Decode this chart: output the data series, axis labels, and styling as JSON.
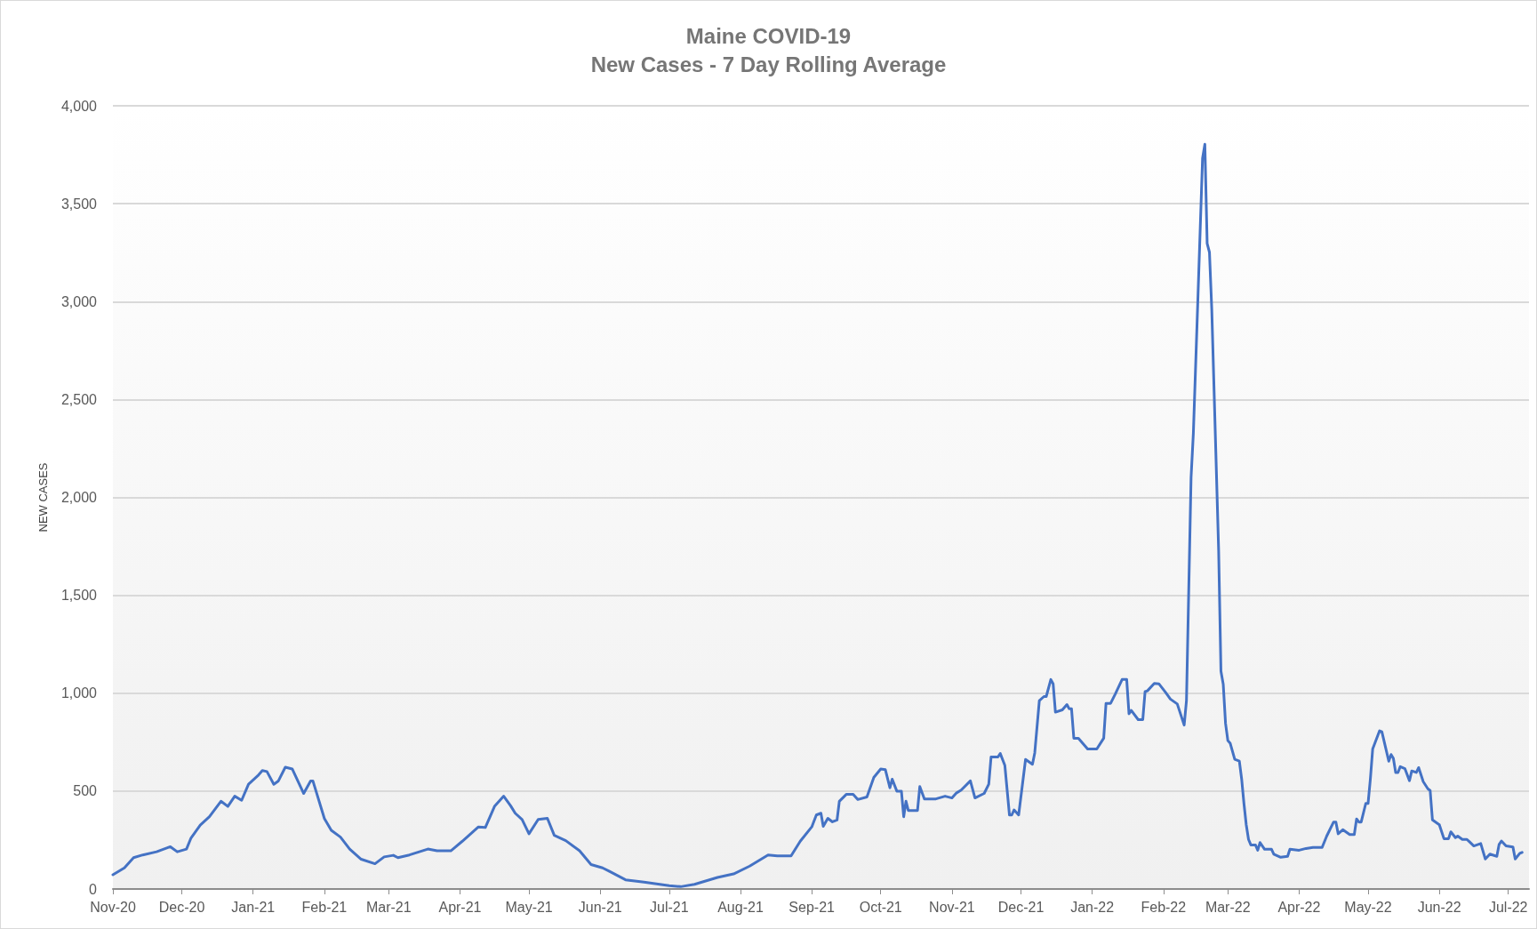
{
  "chart_data": {
    "type": "line",
    "title": "Maine COVID-19",
    "subtitle": "New Cases - 7 Day Rolling Average",
    "ylabel": "NEW CASES",
    "xlim": [
      "2020-11-01",
      "2022-07-10"
    ],
    "xticks": [
      {
        "value": "2020-11-01",
        "label": "Nov-20"
      },
      {
        "value": "2020-12-01",
        "label": "Dec-20"
      },
      {
        "value": "2021-01-01",
        "label": "Jan-21"
      },
      {
        "value": "2021-02-01",
        "label": "Feb-21"
      },
      {
        "value": "2021-03-01",
        "label": "Mar-21"
      },
      {
        "value": "2021-04-01",
        "label": "Apr-21"
      },
      {
        "value": "2021-05-01",
        "label": "May-21"
      },
      {
        "value": "2021-06-01",
        "label": "Jun-21"
      },
      {
        "value": "2021-07-01",
        "label": "Jul-21"
      },
      {
        "value": "2021-08-01",
        "label": "Aug-21"
      },
      {
        "value": "2021-09-01",
        "label": "Sep-21"
      },
      {
        "value": "2021-10-01",
        "label": "Oct-21"
      },
      {
        "value": "2021-11-01",
        "label": "Nov-21"
      },
      {
        "value": "2021-12-01",
        "label": "Dec-21"
      },
      {
        "value": "2022-01-01",
        "label": "Jan-22"
      },
      {
        "value": "2022-02-01",
        "label": "Feb-22"
      },
      {
        "value": "2022-03-01",
        "label": "Mar-22"
      },
      {
        "value": "2022-04-01",
        "label": "Apr-22"
      },
      {
        "value": "2022-05-01",
        "label": "May-22"
      },
      {
        "value": "2022-06-01",
        "label": "Jun-22"
      },
      {
        "value": "2022-07-01",
        "label": "Jul-22"
      }
    ],
    "ylim": [
      0,
      4000
    ],
    "yticks": [
      0,
      500,
      {
        "value": 1000,
        "label": "1,000"
      },
      {
        "value": 1500,
        "label": "1,500"
      },
      {
        "value": 2000,
        "label": "2,000"
      },
      {
        "value": 2500,
        "label": "2,500"
      },
      {
        "value": 3000,
        "label": "3,000"
      },
      {
        "value": 3500,
        "label": "3,500"
      },
      {
        "value": 4000,
        "label": "4,000"
      }
    ],
    "grid": "y",
    "marker": "none",
    "line_style": "solid",
    "series": [
      {
        "color": "#4472c4",
        "x": [
          "2020-11-01",
          "2020-11-06",
          "2020-11-10",
          "2020-11-14",
          "2020-11-20",
          "2020-11-26",
          "2020-11-29",
          "2020-12-03",
          "2020-12-05",
          "2020-12-09",
          "2020-12-13",
          "2020-12-18",
          "2020-12-21",
          "2020-12-24",
          "2020-12-27",
          "2020-12-30",
          "2021-01-03",
          "2021-01-05",
          "2021-01-07",
          "2021-01-10",
          "2021-01-12",
          "2021-01-15",
          "2021-01-18",
          "2021-01-23",
          "2021-01-26",
          "2021-01-27",
          "2021-02-01",
          "2021-02-04",
          "2021-02-08",
          "2021-02-12",
          "2021-02-17",
          "2021-02-23",
          "2021-02-27",
          "2021-03-03",
          "2021-03-05",
          "2021-03-10",
          "2021-03-18",
          "2021-03-22",
          "2021-03-28",
          "2021-04-02",
          "2021-04-09",
          "2021-04-12",
          "2021-04-16",
          "2021-04-20",
          "2021-04-23",
          "2021-04-25",
          "2021-04-28",
          "2021-05-01",
          "2021-05-05",
          "2021-05-09",
          "2021-05-12",
          "2021-05-17",
          "2021-05-23",
          "2021-05-28",
          "2021-06-02",
          "2021-06-05",
          "2021-06-12",
          "2021-06-20",
          "2021-07-01",
          "2021-07-06",
          "2021-07-12",
          "2021-07-22",
          "2021-07-29",
          "2021-08-05",
          "2021-08-13",
          "2021-08-17",
          "2021-08-23",
          "2021-08-27",
          "2021-09-01",
          "2021-09-03",
          "2021-09-05",
          "2021-09-06",
          "2021-09-08",
          "2021-09-10",
          "2021-09-12",
          "2021-09-13",
          "2021-09-16",
          "2021-09-19",
          "2021-09-21",
          "2021-09-25",
          "2021-09-28",
          "2021-10-01",
          "2021-10-03",
          "2021-10-05",
          "2021-10-06",
          "2021-10-08",
          "2021-10-10",
          "2021-10-11",
          "2021-10-12",
          "2021-10-13",
          "2021-10-17",
          "2021-10-18",
          "2021-10-20",
          "2021-10-25",
          "2021-10-29",
          "2021-11-01",
          "2021-11-03",
          "2021-11-05",
          "2021-11-09",
          "2021-11-11",
          "2021-11-15",
          "2021-11-17",
          "2021-11-18",
          "2021-11-21",
          "2021-11-22",
          "2021-11-24",
          "2021-11-26",
          "2021-11-27",
          "2021-11-28",
          "2021-11-30",
          "2021-12-03",
          "2021-12-06",
          "2021-12-07",
          "2021-12-09",
          "2021-12-11",
          "2021-12-12",
          "2021-12-14",
          "2021-12-15",
          "2021-12-16",
          "2021-12-19",
          "2021-12-21",
          "2021-12-22",
          "2021-12-23",
          "2021-12-24",
          "2021-12-26",
          "2021-12-30",
          "2022-01-03",
          "2022-01-06",
          "2022-01-07",
          "2022-01-09",
          "2022-01-11",
          "2022-01-14",
          "2022-01-16",
          "2022-01-17",
          "2022-01-18",
          "2022-01-21",
          "2022-01-23",
          "2022-01-24",
          "2022-01-25",
          "2022-01-28",
          "2022-01-30",
          "2022-02-02",
          "2022-02-04",
          "2022-02-07",
          "2022-02-10",
          "2022-02-11",
          "2022-02-13",
          "2022-02-14",
          "2022-02-16",
          "2022-02-18",
          "2022-02-19",
          "2022-02-20",
          "2022-02-21",
          "2022-02-22",
          "2022-02-25",
          "2022-02-26",
          "2022-02-27",
          "2022-02-28",
          "2022-03-01",
          "2022-03-02",
          "2022-03-04",
          "2022-03-06",
          "2022-03-07",
          "2022-03-08",
          "2022-03-09",
          "2022-03-10",
          "2022-03-11",
          "2022-03-13",
          "2022-03-14",
          "2022-03-15",
          "2022-03-17",
          "2022-03-20",
          "2022-03-21",
          "2022-03-24",
          "2022-03-27",
          "2022-03-28",
          "2022-04-01",
          "2022-04-04",
          "2022-04-07",
          "2022-04-11",
          "2022-04-13",
          "2022-04-16",
          "2022-04-17",
          "2022-04-18",
          "2022-04-20",
          "2022-04-23",
          "2022-04-25",
          "2022-04-26",
          "2022-04-27",
          "2022-04-28",
          "2022-04-30",
          "2022-05-01",
          "2022-05-02",
          "2022-05-03",
          "2022-05-06",
          "2022-05-07",
          "2022-05-09",
          "2022-05-10",
          "2022-05-11",
          "2022-05-12",
          "2022-05-13",
          "2022-05-14",
          "2022-05-15",
          "2022-05-17",
          "2022-05-19",
          "2022-05-20",
          "2022-05-22",
          "2022-05-23",
          "2022-05-25",
          "2022-05-27",
          "2022-05-28",
          "2022-05-29",
          "2022-06-01",
          "2022-06-03",
          "2022-06-05",
          "2022-06-06",
          "2022-06-08",
          "2022-06-09",
          "2022-06-11",
          "2022-06-13",
          "2022-06-14",
          "2022-06-16",
          "2022-06-19",
          "2022-06-21",
          "2022-06-23",
          "2022-06-26",
          "2022-06-27",
          "2022-06-28",
          "2022-06-30",
          "2022-07-03",
          "2022-07-04",
          "2022-07-06",
          "2022-07-07"
        ],
        "values": [
          73,
          108,
          160,
          174,
          190,
          216,
          190,
          204,
          261,
          326,
          369,
          448,
          422,
          474,
          453,
          535,
          578,
          605,
          600,
          535,
          552,
          622,
          613,
          488,
          552,
          552,
          360,
          300,
          265,
          204,
          152,
          129,
          164,
          172,
          160,
          174,
          204,
          195,
          195,
          244,
          317,
          314,
          422,
          474,
          425,
          387,
          355,
          282,
          355,
          361,
          274,
          247,
          195,
          125,
          108,
          90,
          47,
          35,
          17,
          12,
          24,
          59,
          77,
          117,
          174,
          169,
          169,
          244,
          317,
          378,
          387,
          320,
          361,
          343,
          352,
          448,
          483,
          483,
          457,
          470,
          570,
          613,
          610,
          517,
          561,
          500,
          500,
          369,
          448,
          401,
          401,
          523,
          460,
          460,
          474,
          465,
          491,
          505,
          552,
          465,
          488,
          535,
          674,
          674,
          692,
          631,
          378,
          378,
          404,
          378,
          662,
          637,
          695,
          962,
          983,
          983,
          1070,
          1048,
          903,
          915,
          942,
          920,
          920,
          770,
          770,
          715,
          715,
          770,
          948,
          948,
          995,
          1070,
          1070,
          895,
          912,
          865,
          865,
          1008,
          1012,
          1050,
          1048,
          1003,
          970,
          945,
          837,
          962,
          2101,
          2328,
          3025,
          3732,
          3804,
          3297,
          3252,
          2962,
          1726,
          1112,
          1045,
          845,
          758,
          745,
          662,
          653,
          562,
          437,
          328,
          253,
          225,
          225,
          198,
          237,
          203,
          203,
          178,
          162,
          167,
          203,
          198,
          207,
          212,
          212,
          270,
          342,
          342,
          282,
          303,
          278,
          278,
          358,
          342,
          342,
          437,
          437,
          562,
          715,
          808,
          803,
          703,
          653,
          687,
          667,
          595,
          595,
          625,
          615,
          553,
          603,
          595,
          620,
          548,
          512,
          503,
          353,
          328,
          257,
          257,
          292,
          262,
          270,
          253,
          253,
          242,
          220,
          232,
          153,
          178,
          167,
          228,
          245,
          220,
          215,
          153,
          182,
          187
        ]
      }
    ]
  }
}
